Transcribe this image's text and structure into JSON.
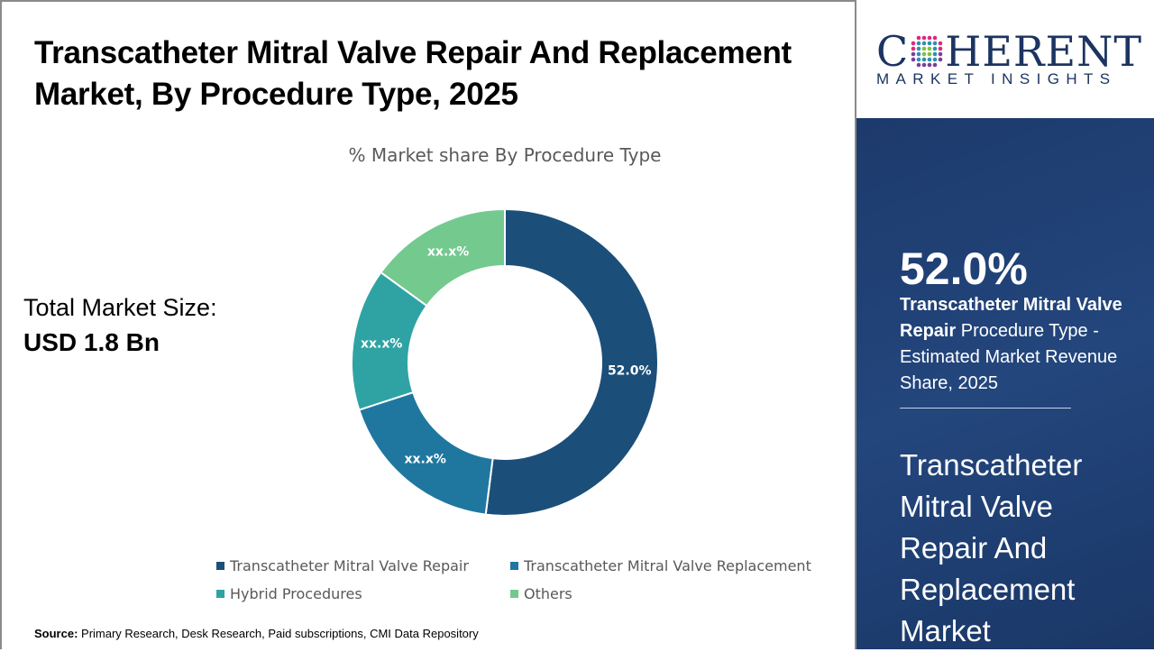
{
  "title": "Transcatheter Mitral Valve Repair And Replacement Market, By Procedure Type, 2025",
  "total_market": {
    "label": "Total Market Size:",
    "value": "USD 1.8 Bn"
  },
  "source": {
    "label": "Source:",
    "text": "Primary Research, Desk Research, Paid subscriptions, CMI Data Repository"
  },
  "logo": {
    "main_left": "C",
    "main_right": "HERENT",
    "sub": "MARKET INSIGHTS"
  },
  "side_panel": {
    "big_value": "52.0%",
    "desc_bold": "Transcatheter Mitral Valve Repair",
    "desc_rest": " Procedure Type - Estimated Market Revenue Share, 2025",
    "market_name": "Transcatheter Mitral Valve Repair And Replacement Market"
  },
  "chart_data": {
    "type": "pie",
    "variant": "donut",
    "title": "% Market share By Procedure Type",
    "categories": [
      "Transcatheter Mitral Valve Repair",
      "Transcatheter Mitral Valve Replacement",
      "Hybrid Procedures",
      "Others"
    ],
    "values": [
      52.0,
      18,
      15,
      15
    ],
    "labels": [
      "52.0%",
      "xx.x%",
      "xx.x%",
      "xx.x%"
    ],
    "colors": [
      "#1b4f7a",
      "#1f77a0",
      "#2fa3a3",
      "#74c98f"
    ],
    "legend_position": "bottom"
  }
}
